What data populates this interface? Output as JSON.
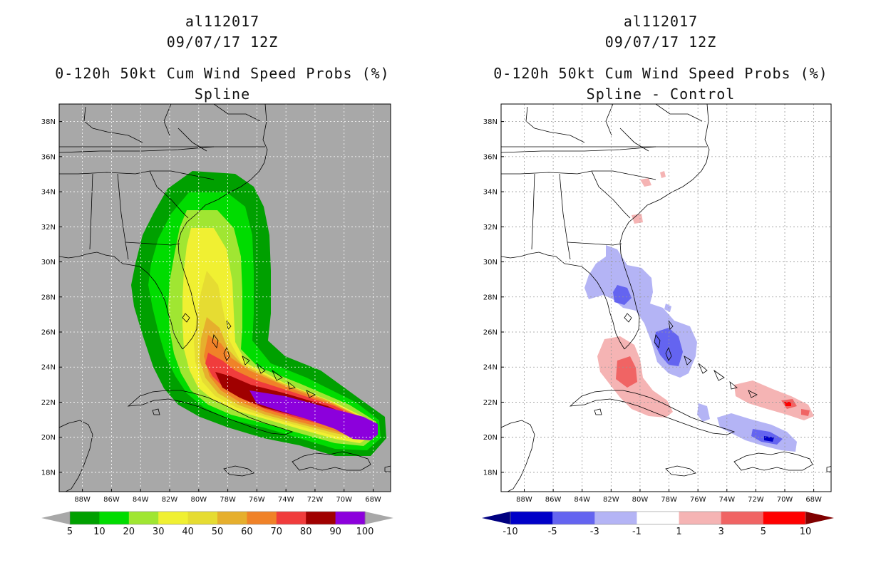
{
  "left_panel": {
    "storm_id": "al112017",
    "datetime": "09/07/17 12Z",
    "product": "0-120h 50kt Cum Wind Speed Probs (%)",
    "subtitle": "Spline",
    "colorbar_labels": [
      "5",
      "10",
      "20",
      "30",
      "40",
      "50",
      "60",
      "70",
      "80",
      "90",
      "100"
    ],
    "colorbar_colors": [
      "#00a000",
      "#00dc00",
      "#a0e632",
      "#f0f032",
      "#e6dc32",
      "#e6af2d",
      "#f08228",
      "#f03c3c",
      "#a00000",
      "#8c00dc"
    ]
  },
  "right_panel": {
    "storm_id": "al112017",
    "datetime": "09/07/17 12Z",
    "product": "0-120h 50kt Cum Wind Speed Probs (%)",
    "subtitle": "Spline - Control",
    "colorbar_labels": [
      "-10",
      "-5",
      "-3",
      "-1",
      "1",
      "3",
      "5",
      "10"
    ],
    "colorbar_colors": [
      "#0000c8",
      "#6464f0",
      "#b4b4f5",
      "#ffffff",
      "#f5b4b4",
      "#f06464",
      "#ff0000"
    ]
  },
  "map": {
    "lat_labels": [
      "38N",
      "36N",
      "34N",
      "32N",
      "30N",
      "28N",
      "26N",
      "24N",
      "22N",
      "20N",
      "18N"
    ],
    "lon_labels": [
      "88W",
      "86W",
      "84W",
      "82W",
      "80W",
      "78W",
      "76W",
      "74W",
      "72W",
      "70W",
      "68W"
    ],
    "lat_values": [
      38,
      36,
      34,
      32,
      30,
      28,
      26,
      24,
      22,
      20,
      18
    ],
    "lon_values": [
      -88,
      -86,
      -84,
      -82,
      -80,
      -78,
      -76,
      -74,
      -72,
      -70,
      -68
    ],
    "extent": {
      "lon_min": -89.6,
      "lon_max": -66.8,
      "lat_min": 16.9,
      "lat_max": 39.0
    }
  }
}
